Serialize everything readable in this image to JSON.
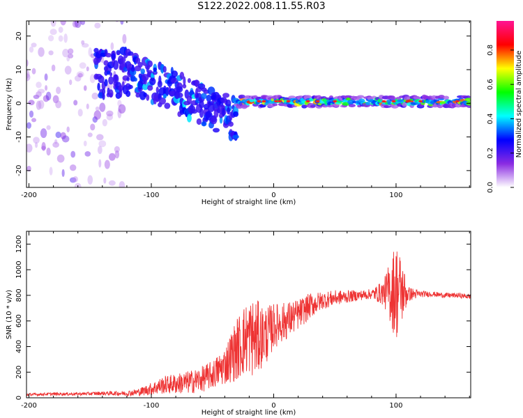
{
  "title": "S122.2022.008.11.55.R03",
  "chart_data": [
    {
      "type": "heatmap",
      "xlabel": "Height of straight line (km)",
      "ylabel": "Frequency (Hz)",
      "xlim": [
        -202,
        161
      ],
      "ylim": [
        -25,
        24.5
      ],
      "xticks": [
        -200,
        -100,
        0,
        100
      ],
      "xtick_labels": [
        "-200",
        "-100",
        "0",
        "100"
      ],
      "yticks": [
        -20,
        -10,
        0,
        10,
        20
      ],
      "ytick_labels": [
        "-20",
        "-10",
        "0",
        "10",
        "20"
      ],
      "colorbar": {
        "label": "Normalized spectral amplitude",
        "range": [
          0,
          0.97
        ],
        "ticks": [
          0.0,
          0.2,
          0.4,
          0.6,
          0.8
        ],
        "tick_labels": [
          "0.0",
          "0.2",
          "0.4",
          "0.6",
          "0.8"
        ],
        "colors": [
          "#ffffff",
          "#8a2be2",
          "#0000ff",
          "#00ffff",
          "#00ff00",
          "#ffff00",
          "#ff0000",
          "#ff1493"
        ]
      },
      "regions": [
        {
          "x": [
            -202,
            -120
          ],
          "freq_center": 0,
          "freq_spread": 25,
          "amplitude": [
            0.05,
            0.25
          ],
          "note": "diffuse noise"
        },
        {
          "x": [
            -145,
            -115
          ],
          "freq_center": 9,
          "freq_spread": 7,
          "amplitude": [
            0.2,
            0.35
          ]
        },
        {
          "x": [
            -115,
            -30
          ],
          "freq_center_start": 9,
          "freq_center_end": -5,
          "freq_spread": 6,
          "amplitude": [
            0.2,
            0.45
          ]
        },
        {
          "x": [
            -30,
            161
          ],
          "freq_center": 0.5,
          "freq_spread": 1.5,
          "amplitude": [
            0.3,
            0.9
          ],
          "note": "narrow band"
        }
      ]
    },
    {
      "type": "line",
      "xlabel": "Height of straight line (km)",
      "ylabel": "SNR (10 * v/v)",
      "xlim": [
        -202,
        161
      ],
      "ylim": [
        0,
        1300
      ],
      "xticks": [
        -200,
        -100,
        0,
        100
      ],
      "xtick_labels": [
        "-200",
        "-100",
        "0",
        "100"
      ],
      "yticks": [
        0,
        200,
        400,
        600,
        800,
        1000,
        1200
      ],
      "ytick_labels": [
        "0",
        "200",
        "400",
        "600",
        "800",
        "1000",
        "1200"
      ],
      "color": "#ee3333",
      "series": [
        {
          "x": [
            -202,
            -180,
            -160,
            -140,
            -120,
            -110,
            -100,
            -90,
            -80,
            -70,
            -60,
            -50,
            -40,
            -35,
            -30,
            -25,
            -20,
            -15,
            -10,
            -5,
            0,
            5,
            10,
            20,
            30,
            40,
            50,
            60,
            70,
            80,
            90,
            95,
            100,
            105,
            110,
            120,
            130,
            140,
            150,
            161
          ],
          "y": [
            25,
            30,
            30,
            35,
            35,
            45,
            70,
            100,
            110,
            120,
            140,
            180,
            250,
            320,
            380,
            440,
            480,
            460,
            480,
            500,
            560,
            580,
            600,
            650,
            720,
            760,
            780,
            790,
            800,
            810,
            820,
            830,
            840,
            830,
            810,
            810,
            810,
            800,
            800,
            790
          ],
          "noise": [
            10,
            12,
            12,
            15,
            20,
            30,
            50,
            70,
            80,
            90,
            100,
            110,
            150,
            200,
            250,
            280,
            300,
            320,
            250,
            220,
            180,
            160,
            150,
            120,
            100,
            70,
            60,
            50,
            40,
            40,
            100,
            250,
            400,
            250,
            60,
            25,
            20,
            20,
            20,
            20
          ]
        }
      ]
    }
  ]
}
